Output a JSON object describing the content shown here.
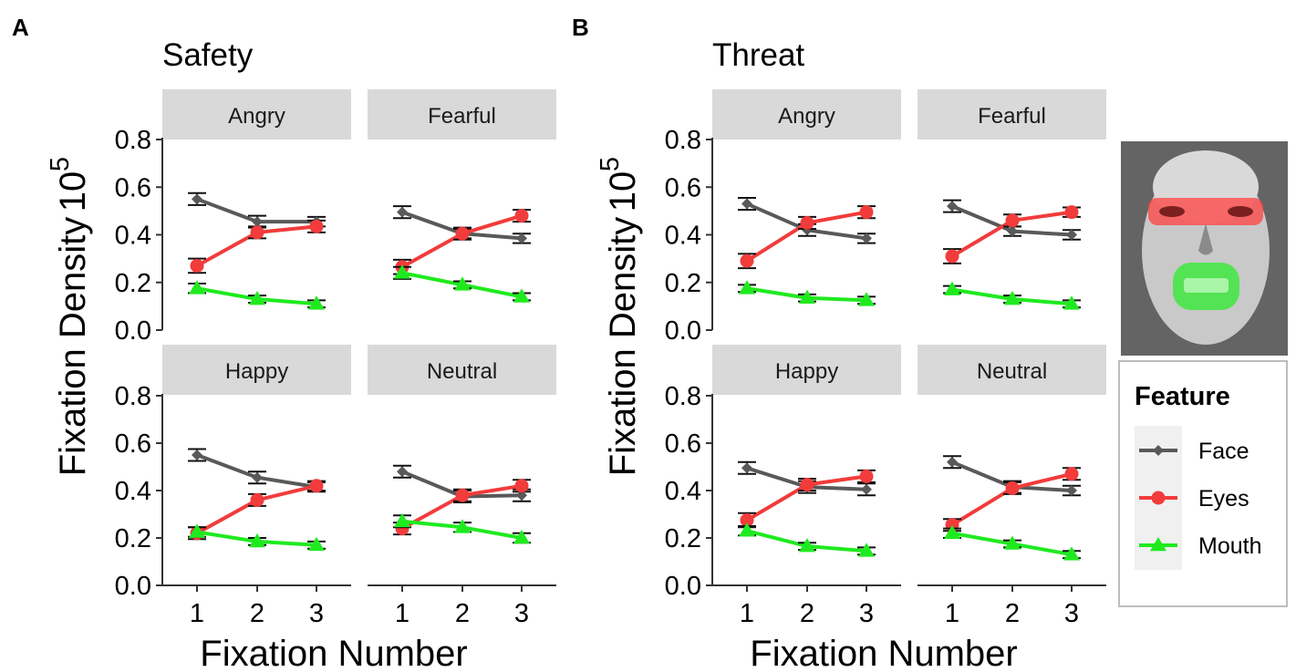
{
  "figure": {
    "panel_letters": [
      "A",
      "B"
    ],
    "group_titles": [
      "Safety",
      "Threat"
    ],
    "ylabel": "Fixation Density",
    "ylabel_exponent_base": "10",
    "ylabel_exponent_power": "5",
    "xlabel": "Fixation Number"
  },
  "colors": {
    "Face": "#595959",
    "Eyes": "#f23b3b",
    "Mouth": "#1fea1f",
    "strip": "#d9d9d9"
  },
  "legend": {
    "title": "Feature",
    "items": [
      {
        "label": "Face",
        "shape": "diamond"
      },
      {
        "label": "Eyes",
        "shape": "circle"
      },
      {
        "label": "Mouth",
        "shape": "triangle"
      }
    ]
  },
  "face_image": {
    "description_icon": "face-feature-mask-icon"
  },
  "chart_data": [
    {
      "type": "line",
      "title": "Safety",
      "xlabel": "Fixation Number",
      "ylabel": "Fixation Density 10^5",
      "ylim": [
        0,
        0.8
      ],
      "yticks": [
        "0.0",
        "0.2",
        "0.4",
        "0.6",
        "0.8"
      ],
      "categories": [
        "1",
        "2",
        "3"
      ],
      "facets": [
        {
          "label": "Angry",
          "series": [
            {
              "name": "Face",
              "values": [
                0.55,
                0.455,
                0.455
              ],
              "err": [
                0.025,
                0.025,
                0.02
              ]
            },
            {
              "name": "Eyes",
              "values": [
                0.27,
                0.41,
                0.435
              ],
              "err": [
                0.03,
                0.025,
                0.025
              ]
            },
            {
              "name": "Mouth",
              "values": [
                0.175,
                0.13,
                0.11
              ],
              "err": [
                0.02,
                0.015,
                0.015
              ]
            }
          ]
        },
        {
          "label": "Fearful",
          "series": [
            {
              "name": "Face",
              "values": [
                0.495,
                0.405,
                0.385
              ],
              "err": [
                0.025,
                0.02,
                0.02
              ]
            },
            {
              "name": "Eyes",
              "values": [
                0.265,
                0.405,
                0.48
              ],
              "err": [
                0.03,
                0.025,
                0.025
              ]
            },
            {
              "name": "Mouth",
              "values": [
                0.24,
                0.19,
                0.14
              ],
              "err": [
                0.025,
                0.015,
                0.015
              ]
            }
          ]
        },
        {
          "label": "Happy",
          "series": [
            {
              "name": "Face",
              "values": [
                0.55,
                0.455,
                0.415
              ],
              "err": [
                0.025,
                0.025,
                0.02
              ]
            },
            {
              "name": "Eyes",
              "values": [
                0.22,
                0.36,
                0.42
              ],
              "err": [
                0.025,
                0.025,
                0.02
              ]
            },
            {
              "name": "Mouth",
              "values": [
                0.225,
                0.185,
                0.17
              ],
              "err": [
                0.02,
                0.015,
                0.015
              ]
            }
          ]
        },
        {
          "label": "Neutral",
          "series": [
            {
              "name": "Face",
              "values": [
                0.48,
                0.375,
                0.38
              ],
              "err": [
                0.025,
                0.025,
                0.025
              ]
            },
            {
              "name": "Eyes",
              "values": [
                0.24,
                0.38,
                0.42
              ],
              "err": [
                0.025,
                0.025,
                0.025
              ]
            },
            {
              "name": "Mouth",
              "values": [
                0.27,
                0.245,
                0.2
              ],
              "err": [
                0.025,
                0.02,
                0.02
              ]
            }
          ]
        }
      ]
    },
    {
      "type": "line",
      "title": "Threat",
      "xlabel": "Fixation Number",
      "ylabel": "Fixation Density 10^5",
      "ylim": [
        0,
        0.8
      ],
      "yticks": [
        "0.0",
        "0.2",
        "0.4",
        "0.6",
        "0.8"
      ],
      "categories": [
        "1",
        "2",
        "3"
      ],
      "facets": [
        {
          "label": "Angry",
          "series": [
            {
              "name": "Face",
              "values": [
                0.53,
                0.42,
                0.385
              ],
              "err": [
                0.025,
                0.025,
                0.02
              ]
            },
            {
              "name": "Eyes",
              "values": [
                0.29,
                0.45,
                0.495
              ],
              "err": [
                0.03,
                0.025,
                0.025
              ]
            },
            {
              "name": "Mouth",
              "values": [
                0.175,
                0.135,
                0.125
              ],
              "err": [
                0.015,
                0.015,
                0.015
              ]
            }
          ]
        },
        {
          "label": "Fearful",
          "series": [
            {
              "name": "Face",
              "values": [
                0.52,
                0.415,
                0.4
              ],
              "err": [
                0.025,
                0.02,
                0.02
              ]
            },
            {
              "name": "Eyes",
              "values": [
                0.31,
                0.46,
                0.495
              ],
              "err": [
                0.03,
                0.025,
                0.02
              ]
            },
            {
              "name": "Mouth",
              "values": [
                0.17,
                0.13,
                0.11
              ],
              "err": [
                0.015,
                0.015,
                0.015
              ]
            }
          ]
        },
        {
          "label": "Happy",
          "series": [
            {
              "name": "Face",
              "values": [
                0.495,
                0.415,
                0.405
              ],
              "err": [
                0.025,
                0.025,
                0.025
              ]
            },
            {
              "name": "Eyes",
              "values": [
                0.275,
                0.425,
                0.46
              ],
              "err": [
                0.03,
                0.025,
                0.025
              ]
            },
            {
              "name": "Mouth",
              "values": [
                0.23,
                0.165,
                0.145
              ],
              "err": [
                0.02,
                0.015,
                0.015
              ]
            }
          ]
        },
        {
          "label": "Neutral",
          "series": [
            {
              "name": "Face",
              "values": [
                0.52,
                0.415,
                0.4
              ],
              "err": [
                0.025,
                0.025,
                0.02
              ]
            },
            {
              "name": "Eyes",
              "values": [
                0.255,
                0.41,
                0.47
              ],
              "err": [
                0.025,
                0.025,
                0.025
              ]
            },
            {
              "name": "Mouth",
              "values": [
                0.22,
                0.175,
                0.13
              ],
              "err": [
                0.02,
                0.015,
                0.015
              ]
            }
          ]
        }
      ]
    }
  ]
}
